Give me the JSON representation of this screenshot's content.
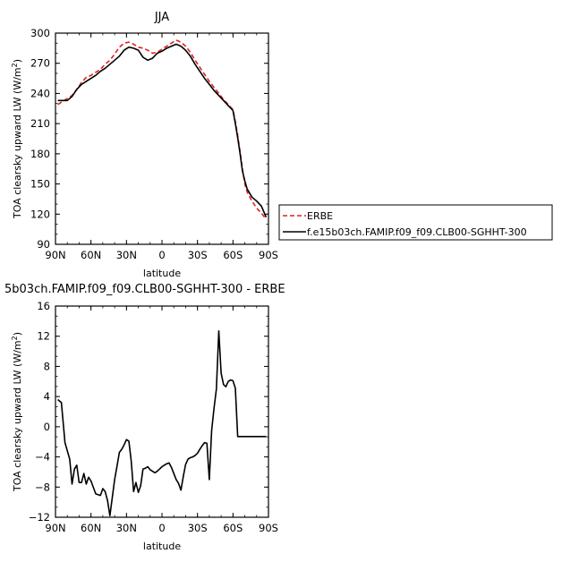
{
  "chart_data": [
    {
      "type": "line",
      "title": "JJA",
      "xlabel": "latitude",
      "ylabel": "TOA clearsky upward LW (W/m²)",
      "ylabel_parts": [
        "TOA clearsky upward LW (W/m",
        "2",
        ")"
      ],
      "xlim": [
        90,
        -90
      ],
      "ylim": [
        90,
        300
      ],
      "xticks": [
        90,
        60,
        30,
        0,
        -30,
        -60,
        -90
      ],
      "xtick_labels": [
        "90N",
        "60N",
        "30N",
        "0",
        "30S",
        "60S",
        "90S"
      ],
      "yticks": [
        90,
        120,
        150,
        180,
        210,
        240,
        270,
        300
      ],
      "ytick_labels": [
        "90",
        "120",
        "150",
        "180",
        "210",
        "240",
        "270",
        "300"
      ],
      "grid": false,
      "legend": "right",
      "series": [
        {
          "name": "ERBE",
          "color": "#e02020",
          "dash": "dashed",
          "x": [
            88,
            84,
            80,
            76,
            72,
            68,
            64,
            60,
            56,
            52,
            48,
            44,
            40,
            36,
            32,
            28,
            24,
            20,
            16,
            12,
            8,
            4,
            0,
            -4,
            -8,
            -12,
            -16,
            -20,
            -24,
            -28,
            -32,
            -36,
            -40,
            -44,
            -48,
            -52,
            -56,
            -60,
            -62,
            -64,
            -66,
            -68,
            -70,
            -72,
            -76,
            -80,
            -84,
            -88
          ],
          "y": [
            229,
            232,
            235,
            238,
            244,
            251,
            256,
            258,
            261,
            264,
            269,
            273,
            279,
            286,
            290,
            291,
            289,
            286,
            285,
            283,
            280,
            281,
            284,
            287,
            290,
            293,
            291,
            287,
            281,
            273,
            266,
            259,
            252,
            246,
            240,
            234,
            229,
            224,
            212,
            198,
            182,
            165,
            150,
            142,
            133,
            126,
            121,
            115
          ]
        },
        {
          "name": "f.e15b03ch.FAMIP.f09_f09.CLB00-SGHHT-300",
          "color": "#000000",
          "dash": "solid",
          "x": [
            88,
            84,
            80,
            76,
            72,
            68,
            64,
            60,
            56,
            52,
            48,
            44,
            40,
            36,
            32,
            28,
            24,
            20,
            16,
            12,
            8,
            4,
            0,
            -4,
            -8,
            -12,
            -16,
            -20,
            -24,
            -28,
            -32,
            -36,
            -40,
            -44,
            -48,
            -52,
            -56,
            -60,
            -62,
            -64,
            -66,
            -68,
            -70,
            -72,
            -76,
            -80,
            -84,
            -88
          ],
          "y": [
            233,
            233,
            233,
            237,
            244,
            249,
            252,
            255,
            258,
            262,
            265,
            269,
            273,
            277,
            283,
            286,
            285,
            283,
            276,
            273,
            275,
            280,
            282,
            285,
            287,
            289,
            287,
            283,
            277,
            269,
            262,
            255,
            249,
            243,
            238,
            233,
            228,
            223,
            210,
            196,
            180,
            163,
            153,
            145,
            137,
            133,
            128,
            117
          ]
        }
      ]
    },
    {
      "type": "line",
      "title": "5b03ch.FAMIP.f09_f09.CLB00-SGHHT-300 - ERBE",
      "xlabel": "latitude",
      "ylabel": "TOA clearsky upward LW (W/m²)",
      "ylabel_parts": [
        "TOA clearsky upward LW (W/m",
        "2",
        ")"
      ],
      "xlim": [
        90,
        -90
      ],
      "ylim": [
        -12,
        16
      ],
      "xticks": [
        90,
        60,
        30,
        0,
        -30,
        -60,
        -90
      ],
      "xtick_labels": [
        "90N",
        "60N",
        "30N",
        "0",
        "30S",
        "60S",
        "90S"
      ],
      "yticks": [
        -12,
        -8,
        -4,
        0,
        4,
        8,
        12,
        16
      ],
      "ytick_labels": [
        "−12",
        "−8",
        "−4",
        "0",
        "4",
        "8",
        "12",
        "16"
      ],
      "grid": false,
      "legend": "none",
      "series": [
        {
          "color": "#000000",
          "dash": "solid",
          "x": [
            88,
            85,
            82,
            78,
            76,
            74,
            72,
            70,
            68,
            66,
            64,
            62,
            60,
            56,
            52,
            50,
            48,
            46,
            44,
            40,
            38,
            36,
            34,
            32,
            30,
            28,
            26,
            24,
            22,
            20,
            18,
            16,
            14,
            12,
            10,
            8,
            6,
            4,
            2,
            0,
            -2,
            -4,
            -6,
            -8,
            -10,
            -12,
            -14,
            -16,
            -18,
            -20,
            -22,
            -24,
            -26,
            -28,
            -30,
            -32,
            -34,
            -36,
            -38,
            -40,
            -42,
            -44,
            -46,
            -48,
            -50,
            -52,
            -54,
            -56,
            -58,
            -60,
            -62,
            -64,
            -66,
            -68,
            -70,
            -72,
            -74,
            -76,
            -78,
            -80,
            -82,
            -84,
            -86,
            -88
          ],
          "y": [
            3.6,
            3.2,
            -2.1,
            -4.3,
            -7.6,
            -5.6,
            -5.1,
            -7.4,
            -7.4,
            -6.2,
            -7.6,
            -6.7,
            -7.2,
            -8.9,
            -9.1,
            -8.2,
            -8.6,
            -9.8,
            -11.8,
            -7.0,
            -5.2,
            -3.4,
            -3.0,
            -2.4,
            -1.7,
            -1.9,
            -4.5,
            -8.6,
            -7.4,
            -8.7,
            -7.8,
            -5.6,
            -5.5,
            -5.3,
            -5.7,
            -5.9,
            -6.1,
            -5.9,
            -5.6,
            -5.3,
            -5.1,
            -4.9,
            -4.8,
            -5.4,
            -6.2,
            -7.0,
            -7.5,
            -8.4,
            -6.6,
            -5.0,
            -4.3,
            -4.1,
            -4.0,
            -3.8,
            -3.5,
            -3.0,
            -2.5,
            -2.1,
            -2.2,
            -7.0,
            -0.5,
            2.5,
            5.0,
            12.7,
            7.1,
            5.6,
            5.3,
            6.0,
            6.2,
            6.1,
            5.1,
            -1.3,
            -1.3,
            -1.3,
            -1.3,
            -1.3,
            -1.3,
            -1.3,
            -1.3,
            -1.3,
            -1.3,
            -1.3,
            -1.3,
            -1.3
          ]
        }
      ]
    }
  ]
}
